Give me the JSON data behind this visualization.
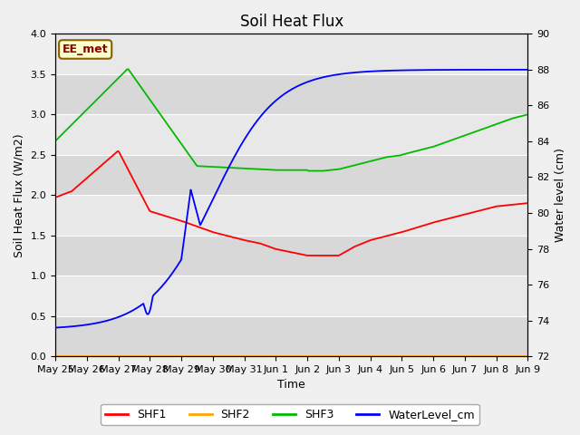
{
  "title": "Soil Heat Flux",
  "xlabel": "Time",
  "ylabel_left": "Soil Heat Flux (W/m2)",
  "ylabel_right": "Water level (cm)",
  "annotation": "EE_met",
  "ylim_left": [
    0.0,
    4.0
  ],
  "ylim_right": [
    72,
    90
  ],
  "plot_bg_color": "#e8e8e8",
  "legend_entries": [
    "SHF1",
    "SHF2",
    "SHF3",
    "WaterLevel_cm"
  ],
  "legend_colors": [
    "#ff0000",
    "#ffa500",
    "#00bb00",
    "#0000ff"
  ],
  "x_tick_labels": [
    "May 25",
    "May 26",
    "May 27",
    "May 28",
    "May 29",
    "May 30",
    "May 31",
    "Jun 1",
    "Jun 2",
    "Jun 3",
    "Jun 4",
    "Jun 5",
    "Jun 6",
    "Jun 7",
    "Jun 8",
    "Jun 9"
  ],
  "shf1_color": "#ff0000",
  "shf2_color": "#ffa500",
  "shf3_color": "#00bb00",
  "water_color": "#0000ff",
  "grid_color": "#ffffff",
  "title_fontsize": 12,
  "label_fontsize": 9,
  "tick_fontsize": 8
}
